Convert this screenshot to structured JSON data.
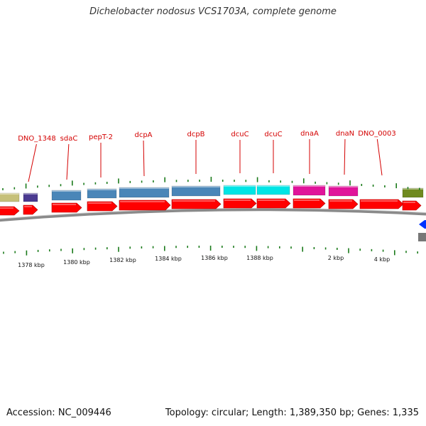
{
  "title": "Dichelobacter nodosus VCS1703A, complete genome",
  "footer": {
    "accession": "Accession: NC_009446",
    "summary": "Topology: circular; Length: 1,389,350 bp; Genes: 1,335"
  },
  "colors": {
    "label_red": "#d40000",
    "tick_green": "#1a7a1a",
    "cds_red": "#ff0000",
    "steelblue": "#4a86b8",
    "cyan": "#00e5e5",
    "magenta": "#e0149a",
    "olive": "#6f8a1f",
    "khaki": "#c6c07a",
    "indigo": "#4a3a90",
    "blue": "#0033ff",
    "backbone": "#8a8a8a"
  },
  "gene_labels": [
    "DNO_1348",
    "sdaC",
    "pepT-2",
    "dcpA",
    "dcpB",
    "dcuC",
    "dcuC",
    "dnaA",
    "dnaN",
    "DNO_0003"
  ],
  "scale_labels": [
    "1378 kbp",
    "1380 kbp",
    "1382 kbp",
    "1384 kbp",
    "1386 kbp",
    "1388 kbp",
    "2 kbp",
    "4 kbp"
  ],
  "features": {
    "top_row": [
      {
        "name": "khaki",
        "color": "khaki"
      },
      {
        "name": "DNO_1348",
        "color": "indigo"
      },
      {
        "name": "sdaC",
        "color": "steelblue"
      },
      {
        "name": "pepT-2",
        "color": "steelblue"
      },
      {
        "name": "dcpA",
        "color": "steelblue"
      },
      {
        "name": "dcpB",
        "color": "steelblue"
      },
      {
        "name": "dcuC",
        "color": "cyan"
      },
      {
        "name": "dcuC",
        "color": "cyan"
      },
      {
        "name": "dnaA",
        "color": "magenta"
      },
      {
        "name": "dnaN",
        "color": "magenta"
      },
      {
        "name": "olive",
        "color": "olive"
      }
    ],
    "cds_row_count": 12
  }
}
